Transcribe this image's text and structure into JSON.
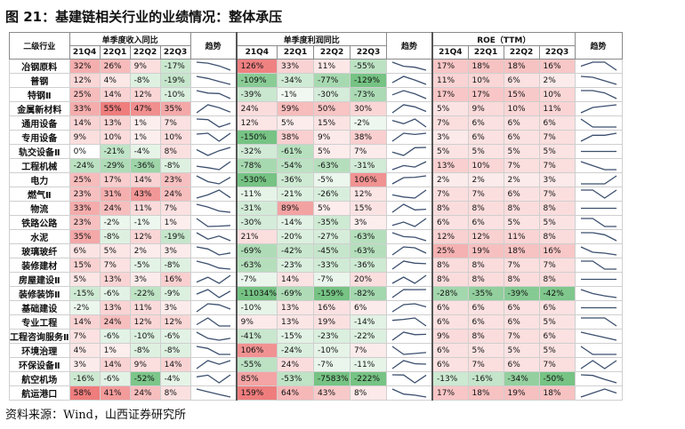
{
  "title": "图 21：基建链相关行业的业绩情况：整体承压",
  "source": "资料来源：Wind，山西证券研究所",
  "headers": {
    "industry": "二级行业",
    "revenue_group": "单季度收入同比",
    "trend": "趋势",
    "profit_group": "单季度利润同比",
    "roe_group": "ROE（TTM）",
    "quarters": [
      "21Q4",
      "22Q1",
      "22Q2",
      "22Q3"
    ]
  },
  "table": {
    "rows": [
      {
        "name": "冶钢原料",
        "rev": [
          "32%",
          "26%",
          "9%",
          "-17%"
        ],
        "revv": [
          32,
          26,
          9,
          -17
        ],
        "profit": [
          "126%",
          "33%",
          "11%",
          "-55%"
        ],
        "profv": [
          126,
          33,
          11,
          -55
        ],
        "roe": [
          "17%",
          "18%",
          "18%",
          "16%"
        ],
        "roev": [
          17,
          18,
          18,
          16
        ]
      },
      {
        "name": "普钢",
        "rev": [
          "12%",
          "4%",
          "-8%",
          "-19%"
        ],
        "revv": [
          12,
          4,
          -8,
          -19
        ],
        "profit": [
          "-109%",
          "-34%",
          "-77%",
          "-129%"
        ],
        "profv": [
          -109,
          -34,
          -77,
          -129
        ],
        "roe": [
          "11%",
          "10%",
          "6%",
          "2%"
        ],
        "roev": [
          11,
          10,
          6,
          2
        ]
      },
      {
        "name": "特钢Ⅱ",
        "rev": [
          "25%",
          "14%",
          "12%",
          "-10%"
        ],
        "revv": [
          25,
          14,
          12,
          -10
        ],
        "profit": [
          "-39%",
          "-1%",
          "-30%",
          "-73%"
        ],
        "profv": [
          -39,
          -1,
          -30,
          -73
        ],
        "roe": [
          "17%",
          "17%",
          "15%",
          "10%"
        ],
        "roev": [
          17,
          17,
          15,
          10
        ]
      },
      {
        "name": "金属新材料",
        "rev": [
          "33%",
          "55%",
          "47%",
          "35%"
        ],
        "revv": [
          33,
          55,
          47,
          35
        ],
        "profit": [
          "24%",
          "59%",
          "50%",
          "30%"
        ],
        "profv": [
          24,
          59,
          50,
          30
        ],
        "roe": [
          "5%",
          "9%",
          "10%",
          "11%"
        ],
        "roev": [
          5,
          9,
          10,
          11
        ]
      },
      {
        "name": "通用设备",
        "rev": [
          "14%",
          "13%",
          "1%",
          "7%"
        ],
        "revv": [
          14,
          13,
          1,
          7
        ],
        "profit": [
          "12%",
          "5%",
          "15%",
          "-2%"
        ],
        "profv": [
          12,
          5,
          15,
          -2
        ],
        "roe": [
          "7%",
          "6%",
          "6%",
          "6%"
        ],
        "roev": [
          7,
          6,
          6,
          6
        ]
      },
      {
        "name": "专用设备",
        "rev": [
          "9%",
          "10%",
          "1%",
          "10%"
        ],
        "revv": [
          9,
          10,
          1,
          10
        ],
        "profit": [
          "-150%",
          "38%",
          "9%",
          "38%"
        ],
        "profv": [
          -150,
          38,
          9,
          38
        ],
        "roe": [
          "3%",
          "6%",
          "6%",
          "7%"
        ],
        "roev": [
          3,
          6,
          6,
          7
        ]
      },
      {
        "name": "轨交设备Ⅱ",
        "rev": [
          "0%",
          "-21%",
          "-4%",
          "8%"
        ],
        "revv": [
          0,
          -21,
          -4,
          8
        ],
        "profit": [
          "-32%",
          "-61%",
          "5%",
          "7%"
        ],
        "profv": [
          -32,
          -61,
          5,
          7
        ],
        "roe": [
          "5%",
          "5%",
          "5%",
          "5%"
        ],
        "roev": [
          5,
          5,
          5,
          5
        ]
      },
      {
        "name": "工程机械",
        "rev": [
          "-24%",
          "-29%",
          "-36%",
          "-8%"
        ],
        "revv": [
          -24,
          -29,
          -36,
          -8
        ],
        "profit": [
          "-78%",
          "-54%",
          "-63%",
          "-31%"
        ],
        "profv": [
          -78,
          -54,
          -63,
          -31
        ],
        "roe": [
          "13%",
          "10%",
          "7%",
          "7%"
        ],
        "roev": [
          13,
          10,
          7,
          7
        ]
      },
      {
        "name": "电力",
        "rev": [
          "25%",
          "17%",
          "14%",
          "23%"
        ],
        "revv": [
          25,
          17,
          14,
          23
        ],
        "profit": [
          "-530%",
          "-36%",
          "-5%",
          "106%"
        ],
        "profv": [
          -530,
          -36,
          -5,
          106
        ],
        "roe": [
          "2%",
          "2%",
          "2%",
          "3%"
        ],
        "roev": [
          2,
          2,
          2,
          3
        ]
      },
      {
        "name": "燃气Ⅱ",
        "rev": [
          "23%",
          "31%",
          "43%",
          "24%"
        ],
        "revv": [
          23,
          31,
          43,
          24
        ],
        "profit": [
          "-11%",
          "-21%",
          "-26%",
          "12%"
        ],
        "profv": [
          -11,
          -21,
          -26,
          12
        ],
        "roe": [
          "7%",
          "7%",
          "6%",
          "7%"
        ],
        "roev": [
          7,
          7,
          6,
          7
        ]
      },
      {
        "name": "物流",
        "rev": [
          "33%",
          "24%",
          "11%",
          "7%"
        ],
        "revv": [
          33,
          24,
          11,
          7
        ],
        "profit": [
          "-31%",
          "89%",
          "5%",
          "15%"
        ],
        "profv": [
          -31,
          89,
          5,
          15
        ],
        "roe": [
          "8%",
          "8%",
          "8%",
          "8%"
        ],
        "roev": [
          8,
          8,
          8,
          8
        ]
      },
      {
        "name": "铁路公路",
        "rev": [
          "23%",
          "-2%",
          "-1%",
          "1%"
        ],
        "revv": [
          23,
          -2,
          -1,
          1
        ],
        "profit": [
          "-30%",
          "-14%",
          "-35%",
          "3%"
        ],
        "profv": [
          -30,
          -14,
          -35,
          3
        ],
        "roe": [
          "6%",
          "6%",
          "5%",
          "5%"
        ],
        "roev": [
          6,
          6,
          5,
          5
        ]
      },
      {
        "name": "水泥",
        "rev": [
          "35%",
          "-8%",
          "12%",
          "-19%"
        ],
        "revv": [
          35,
          -8,
          12,
          -19
        ],
        "profit": [
          "21%",
          "-20%",
          "-27%",
          "-63%"
        ],
        "profv": [
          21,
          -20,
          -27,
          -63
        ],
        "roe": [
          "12%",
          "12%",
          "11%",
          "8%"
        ],
        "roev": [
          12,
          12,
          11,
          8
        ]
      },
      {
        "name": "玻璃玻纤",
        "rev": [
          "6%",
          "5%",
          "2%",
          "3%"
        ],
        "revv": [
          6,
          5,
          2,
          3
        ],
        "profit": [
          "-69%",
          "-42%",
          "-45%",
          "-63%"
        ],
        "profv": [
          -69,
          -42,
          -45,
          -63
        ],
        "roe": [
          "25%",
          "19%",
          "18%",
          "16%"
        ],
        "roev": [
          25,
          19,
          18,
          16
        ]
      },
      {
        "name": "装修建材",
        "rev": [
          "15%",
          "7%",
          "-5%",
          "-8%"
        ],
        "revv": [
          15,
          7,
          -5,
          -8
        ],
        "profit": [
          "-63%",
          "-23%",
          "-33%",
          "-36%"
        ],
        "profv": [
          -63,
          -23,
          -33,
          -36
        ],
        "roe": [
          "8%",
          "8%",
          "7%",
          "7%"
        ],
        "roev": [
          8,
          8,
          7,
          7
        ]
      },
      {
        "name": "房屋建设Ⅱ",
        "rev": [
          "5%",
          "13%",
          "3%",
          "16%"
        ],
        "revv": [
          5,
          13,
          3,
          16
        ],
        "profit": [
          "-7%",
          "14%",
          "-7%",
          "20%"
        ],
        "profv": [
          -7,
          14,
          -7,
          20
        ],
        "roe": [
          "8%",
          "8%",
          "8%",
          "8%"
        ],
        "roev": [
          8,
          8,
          8,
          8
        ]
      },
      {
        "name": "装修装饰Ⅱ",
        "rev": [
          "-15%",
          "-6%",
          "-22%",
          "-9%"
        ],
        "revv": [
          -15,
          -6,
          -22,
          -9
        ],
        "profit": [
          "-11034%",
          "-69%",
          "-159%",
          "-82%"
        ],
        "profv": [
          -11034,
          -69,
          -159,
          -82
        ],
        "roe": [
          "-28%",
          "-35%",
          "-39%",
          "-42%"
        ],
        "roev": [
          -28,
          -35,
          -39,
          -42
        ]
      },
      {
        "name": "基础建设",
        "rev": [
          "-2%",
          "13%",
          "11%",
          "3%"
        ],
        "revv": [
          -2,
          13,
          11,
          3
        ],
        "profit": [
          "-10%",
          "13%",
          "16%",
          "6%"
        ],
        "profv": [
          -10,
          13,
          16,
          6
        ],
        "roe": [
          "6%",
          "6%",
          "6%",
          "6%"
        ],
        "roev": [
          6,
          6,
          6,
          6
        ]
      },
      {
        "name": "专业工程",
        "rev": [
          "14%",
          "24%",
          "12%",
          "12%"
        ],
        "revv": [
          14,
          24,
          12,
          12
        ],
        "profit": [
          "9%",
          "13%",
          "19%",
          "-14%"
        ],
        "profv": [
          9,
          13,
          19,
          -14
        ],
        "roe": [
          "6%",
          "6%",
          "6%",
          "5%"
        ],
        "roev": [
          6,
          6,
          6,
          5
        ]
      },
      {
        "name": "工程咨询服务Ⅱ",
        "rev": [
          "7%",
          "-6%",
          "-10%",
          "-6%"
        ],
        "revv": [
          7,
          -6,
          -10,
          -6
        ],
        "profit": [
          "-41%",
          "-15%",
          "-23%",
          "-22%"
        ],
        "profv": [
          -41,
          -15,
          -23,
          -22
        ],
        "roe": [
          "9%",
          "8%",
          "7%",
          "6%"
        ],
        "roev": [
          9,
          8,
          7,
          6
        ]
      },
      {
        "name": "环境治理",
        "rev": [
          "4%",
          "1%",
          "-8%",
          "-8%"
        ],
        "revv": [
          4,
          1,
          -8,
          -8
        ],
        "profit": [
          "106%",
          "-24%",
          "-10%",
          "7%"
        ],
        "profv": [
          106,
          -24,
          -10,
          7
        ],
        "roe": [
          "6%",
          "5%",
          "5%",
          "5%"
        ],
        "roev": [
          6,
          5,
          5,
          5
        ]
      },
      {
        "name": "环保设备Ⅱ",
        "rev": [
          "3%",
          "14%",
          "9%",
          "14%"
        ],
        "revv": [
          3,
          14,
          9,
          14
        ],
        "profit": [
          "-55%",
          "24%",
          "-7%",
          "-11%"
        ],
        "profv": [
          -55,
          24,
          -7,
          -11
        ],
        "roe": [
          "6%",
          "7%",
          "6%",
          "7%"
        ],
        "roev": [
          6,
          7,
          6,
          7
        ]
      },
      {
        "name": "航空机场",
        "rev": [
          "-16%",
          "-6%",
          "-52%",
          "-4%"
        ],
        "revv": [
          -16,
          -6,
          -52,
          -4
        ],
        "profit": [
          "85%",
          "-53%",
          "-7583%",
          "-222%"
        ],
        "profv": [
          85,
          -53,
          -7583,
          -222
        ],
        "roe": [
          "-13%",
          "-16%",
          "-34%",
          "-50%"
        ],
        "roev": [
          -13,
          -16,
          -34,
          -50
        ]
      },
      {
        "name": "航运港口",
        "rev": [
          "58%",
          "41%",
          "24%",
          "8%"
        ],
        "revv": [
          58,
          41,
          24,
          8
        ],
        "profit": [
          "159%",
          "64%",
          "43%",
          "8%"
        ],
        "profv": [
          159,
          64,
          43,
          8
        ],
        "roe": [
          "17%",
          "18%",
          "19%",
          "18%"
        ],
        "roev": [
          17,
          18,
          19,
          18
        ]
      }
    ]
  }
}
